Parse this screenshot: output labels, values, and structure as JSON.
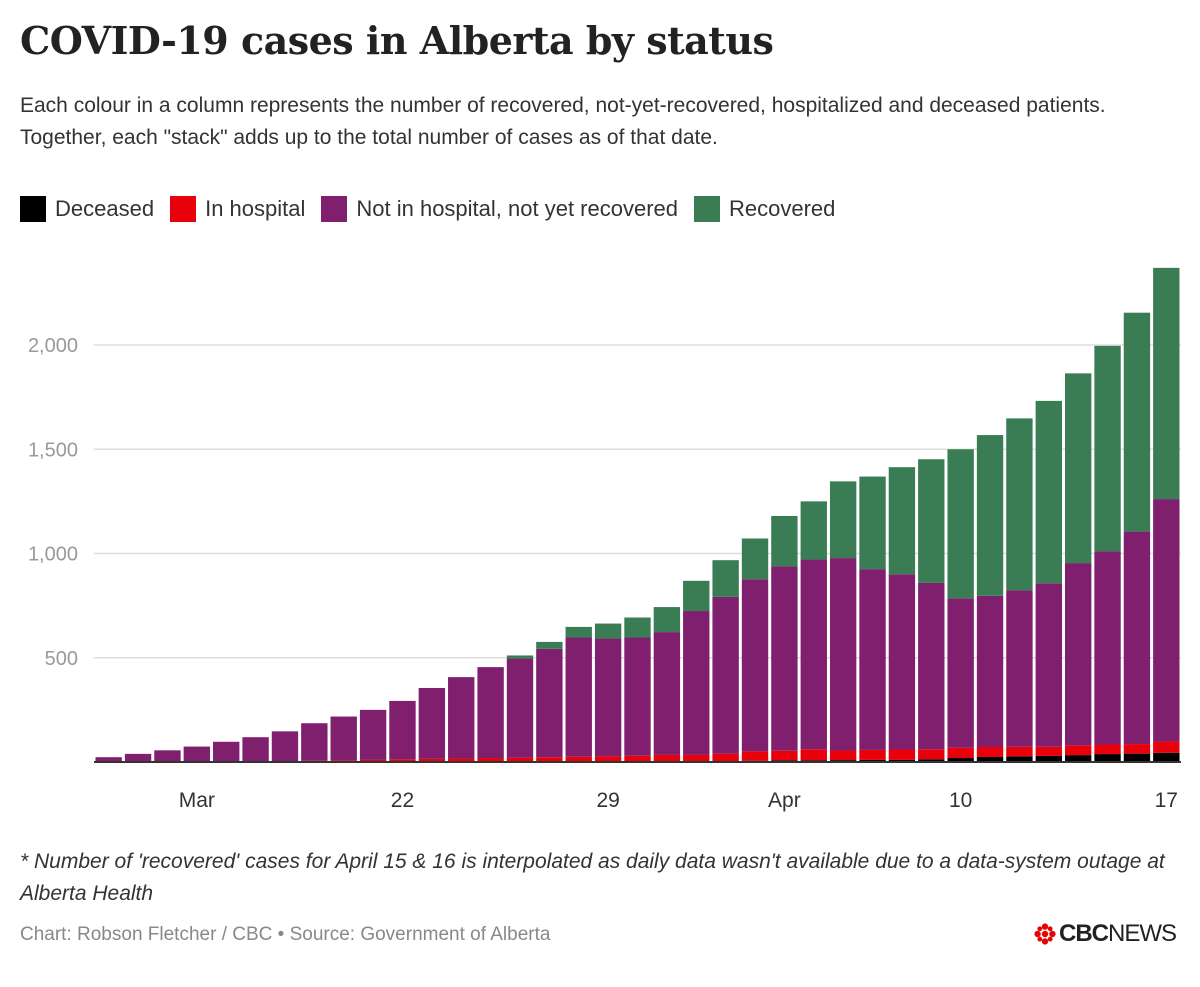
{
  "title": "COVID-19 cases in Alberta by status",
  "subtitle": "Each colour in a column represents the number of recovered, not-yet-recovered, hospitalized and deceased patients. Together, each \"stack\" adds up to the total number of cases as of that date.",
  "legend": [
    {
      "label": "Deceased",
      "color": "#000000"
    },
    {
      "label": "In hospital",
      "color": "#e8000b"
    },
    {
      "label": "Not in hospital, not yet recovered",
      "color": "#7f1f6e"
    },
    {
      "label": "Recovered",
      "color": "#3a7d55"
    }
  ],
  "note": "* Number of 'recovered' cases for April 15 & 16 is interpolated as daily data wasn't available due to a data-system outage at Alberta Health",
  "credit": "Chart: Robson Fletcher / CBC • Source: Government of Alberta",
  "logo": {
    "brand": "CBC",
    "suffix": "NEWS"
  },
  "chart_data": {
    "type": "bar",
    "stacked": true,
    "grid": true,
    "ylim": [
      0,
      2400
    ],
    "yticks": [
      500,
      1000,
      1500,
      2000
    ],
    "ytick_labels": [
      "500",
      "1,000",
      "1,500",
      "2,000"
    ],
    "xtick_labels": [
      {
        "label": "Mar",
        "date": "2020-03-15"
      },
      {
        "label": "22",
        "date": "2020-03-22"
      },
      {
        "label": "29",
        "date": "2020-03-29"
      },
      {
        "label": "Apr",
        "date": "2020-04-04"
      },
      {
        "label": "10",
        "date": "2020-04-10"
      },
      {
        "label": "17",
        "date": "2020-04-17"
      }
    ],
    "categories": [
      "2020-03-12",
      "2020-03-13",
      "2020-03-14",
      "2020-03-15",
      "2020-03-16",
      "2020-03-17",
      "2020-03-18",
      "2020-03-19",
      "2020-03-20",
      "2020-03-21",
      "2020-03-22",
      "2020-03-23",
      "2020-03-24",
      "2020-03-25",
      "2020-03-26",
      "2020-03-27",
      "2020-03-28",
      "2020-03-29",
      "2020-03-30",
      "2020-03-31",
      "2020-04-01",
      "2020-04-02",
      "2020-04-03",
      "2020-04-04",
      "2020-04-05",
      "2020-04-06",
      "2020-04-07",
      "2020-04-08",
      "2020-04-09",
      "2020-04-10",
      "2020-04-11",
      "2020-04-12",
      "2020-04-13",
      "2020-04-14",
      "2020-04-15",
      "2020-04-16",
      "2020-04-17"
    ],
    "series": [
      {
        "name": "Deceased",
        "color": "#000000",
        "values": [
          0,
          0,
          0,
          0,
          0,
          0,
          0,
          0,
          0,
          0,
          0,
          1,
          1,
          1,
          1,
          1,
          1,
          1,
          1,
          1,
          2,
          3,
          6,
          8,
          8,
          9,
          10,
          10,
          13,
          19,
          24,
          27,
          29,
          33,
          38,
          40,
          44
        ]
      },
      {
        "name": "In hospital",
        "color": "#e8000b",
        "values": [
          0,
          0,
          0,
          0,
          0,
          2,
          4,
          6,
          8,
          10,
          13,
          14,
          16,
          18,
          20,
          22,
          24,
          26,
          29,
          33,
          32,
          37,
          45,
          46,
          53,
          46,
          48,
          50,
          48,
          49,
          48,
          46,
          44,
          47,
          46,
          46,
          54
        ]
      },
      {
        "name": "Not in hospital, not yet recovered",
        "color": "#7f1f6e",
        "values": [
          23,
          39,
          56,
          74,
          97,
          117,
          143,
          180,
          210,
          240,
          280,
          340,
          390,
          436,
          475,
          520,
          572,
          565,
          567,
          589,
          690,
          752,
          825,
          884,
          910,
          923,
          867,
          840,
          798,
          717,
          725,
          750,
          784,
          874,
          926,
          1019,
          1163
        ]
      },
      {
        "name": "Recovered",
        "color": "#3a7d55",
        "values": [
          0,
          0,
          0,
          0,
          0,
          0,
          0,
          0,
          0,
          0,
          0,
          0,
          0,
          0,
          15,
          33,
          51,
          72,
          96,
          120,
          145,
          176,
          196,
          242,
          279,
          368,
          444,
          514,
          593,
          715,
          771,
          825,
          875,
          910,
          986,
          1050,
          1109
        ]
      }
    ]
  }
}
